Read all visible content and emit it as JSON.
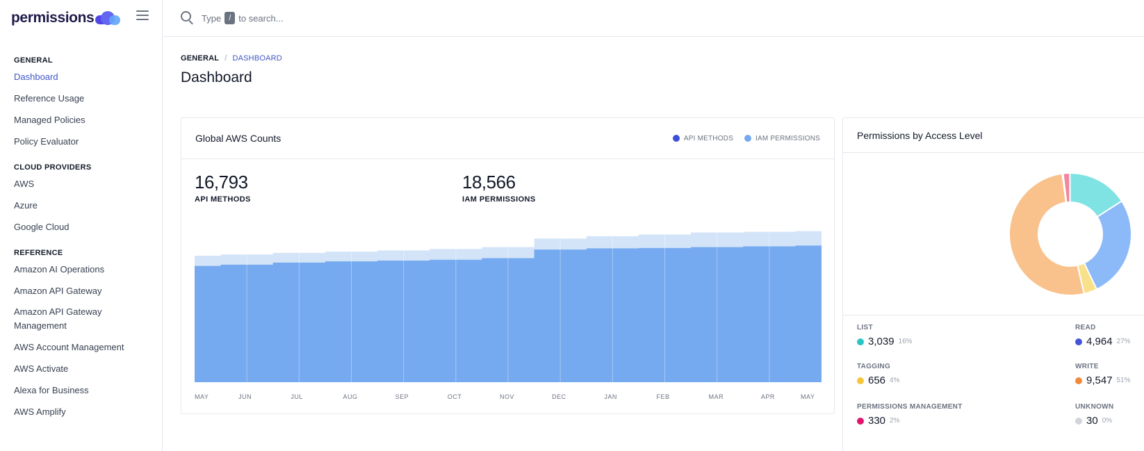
{
  "brand": {
    "name": "permissions"
  },
  "search": {
    "prefix": "Type",
    "key": "/",
    "suffix": "to search..."
  },
  "sidebar": {
    "sections": [
      {
        "heading": "GENERAL",
        "items": [
          "Dashboard",
          "Reference Usage",
          "Managed Policies",
          "Policy Evaluator"
        ]
      },
      {
        "heading": "CLOUD PROVIDERS",
        "items": [
          "AWS",
          "Azure",
          "Google Cloud"
        ]
      },
      {
        "heading": "REFERENCE",
        "items": [
          "Amazon AI Operations",
          "Amazon API Gateway",
          "Amazon API Gateway Management",
          "AWS Account Management",
          "AWS Activate",
          "Alexa for Business",
          "AWS Amplify"
        ]
      }
    ],
    "active_item": "Dashboard"
  },
  "breadcrumb": {
    "root": "GENERAL",
    "separator": "/",
    "current": "DASHBOARD"
  },
  "page": {
    "title": "Dashboard"
  },
  "global_card": {
    "title": "Global AWS Counts",
    "legend": [
      {
        "label": "API METHODS",
        "color": "#3b4fd8"
      },
      {
        "label": "IAM PERMISSIONS",
        "color": "#76aaf0"
      }
    ],
    "stats": [
      {
        "value": "16,793",
        "label": "API METHODS"
      },
      {
        "value": "18,566",
        "label": "IAM PERMISSIONS"
      }
    ]
  },
  "chart_data": {
    "type": "area",
    "title": "Global AWS Counts",
    "x": [
      "MAY",
      "JUN",
      "JUL",
      "AUG",
      "SEP",
      "OCT",
      "NOV",
      "DEC",
      "JAN",
      "FEB",
      "MAR",
      "APR",
      "MAY"
    ],
    "series": [
      {
        "name": "IAM PERMISSIONS",
        "color": "#d3e4f8",
        "values": [
          15550,
          15700,
          15900,
          16050,
          16200,
          16380,
          16600,
          17650,
          17950,
          18150,
          18400,
          18480,
          18566
        ]
      },
      {
        "name": "API METHODS",
        "color": "#76aaf0",
        "values": [
          14300,
          14450,
          14700,
          14850,
          14950,
          15050,
          15250,
          16300,
          16450,
          16500,
          16600,
          16700,
          16793
        ]
      }
    ],
    "ylim": [
      0,
      20500
    ],
    "grid": true
  },
  "access_card": {
    "title": "Permissions by Access Level",
    "levels": [
      {
        "label": "LIST",
        "value": "3,039",
        "pct": "16%",
        "color": "#2cc5c5",
        "slice_color": "#7fe3e3",
        "share": 0.16
      },
      {
        "label": "READ",
        "value": "4,964",
        "pct": "27%",
        "color": "#4354d6",
        "slice_color": "#8cbaf8",
        "share": 0.27
      },
      {
        "label": "TAGGING",
        "value": "656",
        "pct": "4%",
        "color": "#f5c53b",
        "slice_color": "#f9e08a",
        "share": 0.035
      },
      {
        "label": "WRITE",
        "value": "9,547",
        "pct": "51%",
        "color": "#f2893a",
        "slice_color": "#f9c18b",
        "share": 0.515
      },
      {
        "label": "PERMISSIONS MANAGEMENT",
        "value": "330",
        "pct": "2%",
        "color": "#e0166e",
        "slice_color": "#f0879f",
        "share": 0.018
      },
      {
        "label": "UNKNOWN",
        "value": "30",
        "pct": "0%",
        "color": "#d1d5db",
        "slice_color": "#d1d5db",
        "share": 0.002
      }
    ]
  }
}
